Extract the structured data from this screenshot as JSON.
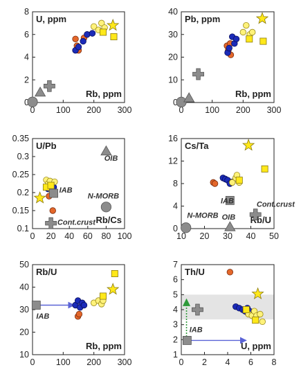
{
  "chart_data": [
    {
      "type": "scatter",
      "panel_label": "U, ppm",
      "xlabel": "Rb, ppm",
      "xlim": [
        0,
        300
      ],
      "ylim": [
        0,
        8
      ],
      "xticks": [
        "0",
        "100",
        "200",
        "300"
      ],
      "yticks": [
        "0",
        "2",
        "4",
        "6",
        "8"
      ],
      "groups": {
        "orange": [
          [
            140,
            5.6
          ],
          [
            145,
            5.0
          ],
          [
            150,
            4.6
          ],
          [
            168,
            5.7
          ]
        ],
        "blue": [
          [
            140,
            4.6
          ],
          [
            150,
            4.9
          ],
          [
            165,
            5.4
          ],
          [
            178,
            6.0
          ],
          [
            195,
            6.1
          ]
        ],
        "pale_yellow": [
          [
            200,
            6.7
          ],
          [
            215,
            6.4
          ],
          [
            225,
            7.0
          ],
          [
            235,
            6.6
          ]
        ],
        "yellow_square": [
          [
            230,
            6.2
          ],
          [
            265,
            5.8
          ]
        ],
        "gray_circle": [
          [
            0,
            0.05
          ]
        ],
        "gray_triangle": [
          [
            25,
            0.9
          ]
        ],
        "gray_plus": [
          [
            55,
            1.45
          ]
        ],
        "gray_square": [],
        "star": [
          [
            262,
            6.8
          ]
        ]
      },
      "annotations": [],
      "arrows": []
    },
    {
      "type": "scatter",
      "panel_label": "Pb, ppm",
      "xlabel": "Rb, ppm",
      "xlim": [
        0,
        300
      ],
      "ylim": [
        0,
        40
      ],
      "xticks": [
        "0",
        "100",
        "200",
        "300"
      ],
      "yticks": [
        "0",
        "10",
        "20",
        "30",
        "40"
      ],
      "groups": {
        "orange": [
          [
            148,
            25
          ],
          [
            152,
            23
          ],
          [
            158,
            26
          ],
          [
            160,
            21
          ]
        ],
        "blue": [
          [
            150,
            22
          ],
          [
            155,
            24
          ],
          [
            165,
            29
          ],
          [
            172,
            26
          ],
          [
            178,
            28
          ]
        ],
        "pale_yellow": [
          [
            200,
            31
          ],
          [
            210,
            34
          ],
          [
            222,
            30
          ],
          [
            230,
            31
          ]
        ],
        "yellow_square": [
          [
            220,
            28
          ],
          [
            265,
            27
          ]
        ],
        "gray_circle": [
          [
            0,
            0.2
          ]
        ],
        "gray_triangle": [
          [
            25,
            2.0
          ]
        ],
        "gray_plus": [
          [
            55,
            12.5
          ]
        ],
        "gray_square": [],
        "star": [
          [
            262,
            37
          ]
        ]
      },
      "annotations": [],
      "arrows": []
    },
    {
      "type": "scatter",
      "panel_label": "U/Pb",
      "xlabel": "Rb/Cs",
      "xlim": [
        0,
        100
      ],
      "ylim": [
        0.1,
        0.35
      ],
      "xticks": [
        "0",
        "20",
        "40",
        "60",
        "80",
        "100"
      ],
      "yticks": [
        "0.1",
        "0.15",
        "0.2",
        "0.25",
        "0.3",
        "0.35"
      ],
      "groups": {
        "orange": [
          [
            18,
            0.19
          ],
          [
            22,
            0.15
          ],
          [
            20,
            0.215
          ]
        ],
        "blue": [
          [
            17,
            0.21
          ],
          [
            19,
            0.225
          ],
          [
            21,
            0.22
          ],
          [
            23,
            0.215
          ]
        ],
        "pale_yellow": [
          [
            15,
            0.235
          ],
          [
            17,
            0.225
          ],
          [
            19,
            0.232
          ],
          [
            21,
            0.205
          ],
          [
            24,
            0.23
          ]
        ],
        "yellow_square": [
          [
            15,
            0.215
          ],
          [
            20,
            0.22
          ]
        ],
        "gray_circle": [
          [
            80,
            0.16
          ]
        ],
        "gray_triangle": [
          [
            80,
            0.315
          ]
        ],
        "gray_plus": [
          [
            20,
            0.115
          ]
        ],
        "gray_square": [
          [
            23,
            0.198
          ]
        ],
        "star": [
          [
            8,
            0.185
          ]
        ]
      },
      "annotations": [
        {
          "text": "OIB",
          "x": 78,
          "y": 0.288
        },
        {
          "text": "IAB",
          "x": 29,
          "y": 0.2
        },
        {
          "text": "N-MORB",
          "x": 60,
          "y": 0.184
        },
        {
          "text": "Cont.crust",
          "x": 27,
          "y": 0.111
        }
      ],
      "arrows": []
    },
    {
      "type": "scatter",
      "panel_label": "Cs/Ta",
      "xlabel": "Rb/U",
      "xlim": [
        10,
        50
      ],
      "ylim": [
        0,
        16
      ],
      "xticks": [
        "10",
        "20",
        "30",
        "40",
        "50"
      ],
      "yticks": [
        "0",
        "4",
        "8",
        "12",
        "16"
      ],
      "groups": {
        "orange": [
          [
            23.8,
            8.2
          ],
          [
            24.5,
            8.0
          ]
        ],
        "blue": [
          [
            28,
            9.0
          ],
          [
            29,
            8.8
          ],
          [
            30,
            8.6
          ],
          [
            31,
            8.0
          ],
          [
            32,
            8.3
          ]
        ],
        "pale_yellow": [
          [
            32,
            8.2
          ],
          [
            33.5,
            9.0
          ],
          [
            34,
            9.5
          ],
          [
            35,
            8.2
          ]
        ],
        "yellow_square": [
          [
            35,
            8.6
          ],
          [
            46,
            10.6
          ]
        ],
        "gray_circle": [
          [
            12,
            0.15
          ]
        ],
        "gray_triangle": [
          [
            31,
            0.3
          ]
        ],
        "gray_plus": [
          [
            42,
            2.5
          ]
        ],
        "gray_square": [
          [
            31,
            5.0
          ]
        ],
        "star": [
          [
            39,
            14.8
          ]
        ]
      },
      "annotations": [
        {
          "text": "IAB",
          "x": 27,
          "y": 4.5
        },
        {
          "text": "Cont.crust",
          "x": 42.5,
          "y": 3.9
        },
        {
          "text": "N-MORB",
          "x": 12.5,
          "y": 1.9
        },
        {
          "text": "OIB",
          "x": 27.5,
          "y": 1.6
        }
      ],
      "arrows": []
    },
    {
      "type": "scatter",
      "panel_label": "Rb/U",
      "xlabel": "Rb, ppm",
      "xlim": [
        0,
        300
      ],
      "ylim": [
        10,
        50
      ],
      "xticks": [
        "0",
        "100",
        "200",
        "300"
      ],
      "yticks": [
        "10",
        "20",
        "30",
        "40",
        "50"
      ],
      "groups": {
        "orange": [
          [
            148,
            27
          ],
          [
            152,
            28
          ]
        ],
        "blue": [
          [
            140,
            32
          ],
          [
            148,
            34
          ],
          [
            155,
            31
          ],
          [
            162,
            33
          ],
          [
            168,
            32
          ]
        ],
        "pale_yellow": [
          [
            200,
            33
          ],
          [
            215,
            34
          ],
          [
            225,
            32.5
          ],
          [
            230,
            34
          ]
        ],
        "yellow_square": [
          [
            230,
            36
          ],
          [
            268,
            46
          ]
        ],
        "gray_circle": [],
        "gray_triangle": [],
        "gray_plus": [],
        "gray_square": [
          [
            12,
            32
          ]
        ],
        "star": [
          [
            262,
            39
          ]
        ]
      },
      "annotations": [
        {
          "text": "IAB",
          "x": 12,
          "y": 26
        }
      ],
      "arrows": [
        {
          "from": [
            22,
            32
          ],
          "to": [
            136,
            32
          ],
          "color": "#5a63d6",
          "style": "solid"
        }
      ]
    },
    {
      "type": "scatter",
      "panel_label": "Th/U",
      "xlabel": "U, ppm",
      "xlim": [
        0,
        8
      ],
      "ylim": [
        1,
        7
      ],
      "xticks": [
        "0",
        "2",
        "4",
        "6",
        "8"
      ],
      "yticks": [
        "1",
        "2",
        "3",
        "4",
        "5",
        "6",
        "7"
      ],
      "band": [
        3.35,
        5.0
      ],
      "groups": {
        "orange": [
          [
            4.2,
            6.5
          ],
          [
            5.7,
            3.8
          ],
          [
            5.5,
            4.0
          ]
        ],
        "blue": [
          [
            4.7,
            4.2
          ],
          [
            5.0,
            4.1
          ],
          [
            5.3,
            4.0
          ],
          [
            5.5,
            3.9
          ],
          [
            5.7,
            4.1
          ],
          [
            5.9,
            3.9
          ]
        ],
        "pale_yellow": [
          [
            5.8,
            3.7
          ],
          [
            6.1,
            3.6
          ],
          [
            6.3,
            3.9
          ],
          [
            6.5,
            3.6
          ],
          [
            6.8,
            3.7
          ],
          [
            7.0,
            3.2
          ]
        ],
        "yellow_square": [
          [
            5.6,
            4.0
          ],
          [
            6.4,
            3.3
          ]
        ],
        "gray_circle": [],
        "gray_triangle": [],
        "gray_plus": [
          [
            1.4,
            4.0
          ]
        ],
        "gray_square": [
          [
            0.5,
            1.95
          ]
        ],
        "star": [
          [
            6.6,
            5.05
          ]
        ]
      },
      "annotations": [
        {
          "text": "IAB",
          "x": 0.7,
          "y": 2.5
        }
      ],
      "arrows": [
        {
          "from": [
            0.75,
            1.95
          ],
          "to": [
            5.6,
            1.95
          ],
          "color": "#5a63d6",
          "style": "solid"
        },
        {
          "from": [
            0.45,
            2.2
          ],
          "to": [
            0.45,
            4.7
          ],
          "color": "#2e9a3a",
          "style": "dotted"
        }
      ]
    }
  ],
  "colors": {
    "orange": "#e4672a",
    "blue": "#1b2bb8",
    "pale_yellow": "#fff27a",
    "yellow_square": "#ffe81a",
    "gray": "#8c8c8c",
    "band": "#e4e4e4"
  }
}
